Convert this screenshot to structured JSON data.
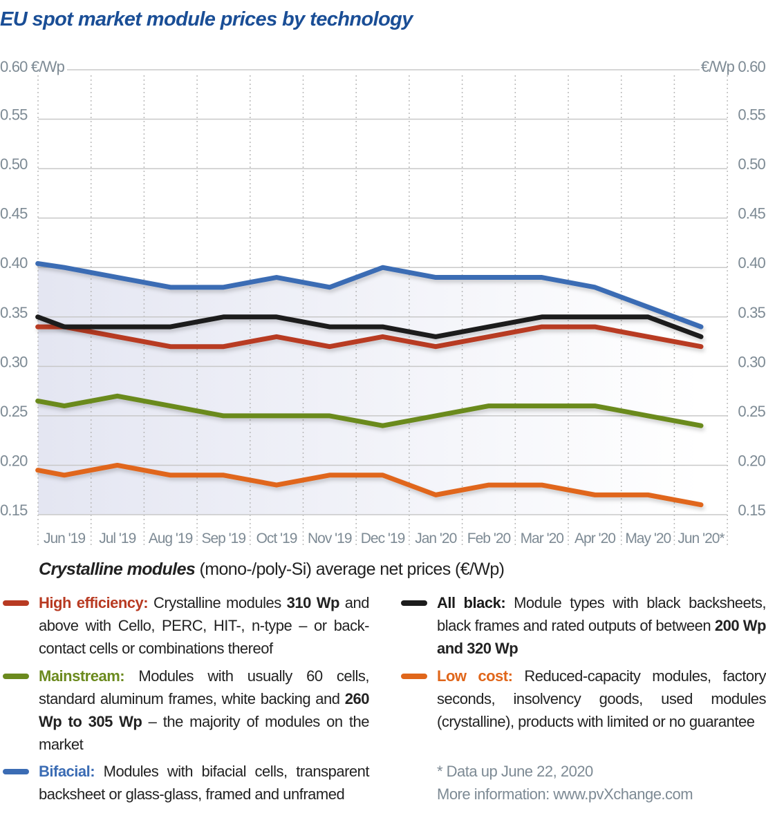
{
  "chart_data": {
    "type": "line",
    "title": "EU spot market module prices  by technology",
    "ylabel_left": "0.60 €/Wp",
    "ylabel_right": "€/Wp 0.60",
    "ylim": [
      0.15,
      0.6
    ],
    "yticks": [
      "0.55",
      "0.50",
      "0.45",
      "0.40",
      "0.35",
      "0.30",
      "0.25",
      "0.20",
      "0.15"
    ],
    "ytick_values": [
      0.55,
      0.5,
      0.45,
      0.4,
      0.35,
      0.3,
      0.25,
      0.2,
      0.15
    ],
    "categories": [
      "Jun '19",
      "Jul '19",
      "Aug '19",
      "Sep '19",
      "Oct '19",
      "Nov '19",
      "Dec '19",
      "Jan '20",
      "Feb '20",
      "Mar '20",
      "Apr '20",
      "May '20",
      "Jun '20*"
    ],
    "x": [
      -0.5,
      0,
      1,
      2,
      3,
      4,
      5,
      6,
      7,
      8,
      9,
      10,
      11,
      12
    ],
    "grid": true,
    "series": [
      {
        "name": "Bifacial",
        "color": "#3b6cb4",
        "values": [
          0.404,
          0.4,
          0.39,
          0.38,
          0.38,
          0.39,
          0.38,
          0.4,
          0.39,
          0.39,
          0.39,
          0.38,
          0.36,
          0.34
        ]
      },
      {
        "name": "All black",
        "color": "#1c1c1c",
        "values": [
          0.35,
          0.34,
          0.34,
          0.34,
          0.35,
          0.35,
          0.34,
          0.34,
          0.33,
          0.34,
          0.35,
          0.35,
          0.35,
          0.33
        ]
      },
      {
        "name": "High efficiency",
        "color": "#b83a22",
        "values": [
          0.34,
          0.34,
          0.33,
          0.32,
          0.32,
          0.33,
          0.32,
          0.33,
          0.32,
          0.33,
          0.34,
          0.34,
          0.33,
          0.32
        ]
      },
      {
        "name": "Mainstream",
        "color": "#6b8a1e",
        "values": [
          0.265,
          0.26,
          0.27,
          0.26,
          0.25,
          0.25,
          0.25,
          0.24,
          0.25,
          0.26,
          0.26,
          0.26,
          0.25,
          0.24
        ]
      },
      {
        "name": "Low cost",
        "color": "#e0661a",
        "values": [
          0.195,
          0.19,
          0.2,
          0.19,
          0.19,
          0.18,
          0.19,
          0.19,
          0.17,
          0.18,
          0.18,
          0.17,
          0.17,
          0.16
        ]
      }
    ]
  },
  "subtitle": {
    "bold": "Crystalline modules",
    "rest": " (mono-/poly-Si) average net prices (€/Wp)"
  },
  "legend": [
    {
      "label": "High efficiency:",
      "color": "#b83a22",
      "parts": [
        {
          "t": " Crystalline modules "
        },
        {
          "t": "310 Wp",
          "b": true
        },
        {
          "t": " and above with Cello, PERC, HIT-, n-type – or back-contact cells or combinations thereof"
        }
      ]
    },
    {
      "label": "Mainstream:",
      "color": "#6b8a1e",
      "parts": [
        {
          "t": " Modules with usually 60 cells, standard aluminum frames, white backing and "
        },
        {
          "t": "260 Wp to 305 Wp",
          "b": true
        },
        {
          "t": " – the majority of modules on the market"
        }
      ]
    },
    {
      "label": "Bifacial:",
      "color": "#3b6cb4",
      "parts": [
        {
          "t": " Modules with bifacial cells, transparent backsheet or glass-glass, framed and unframed"
        }
      ]
    },
    {
      "label": "All black:",
      "color": "#1c1c1c",
      "parts": [
        {
          "t": " Module types with black backsheets, black frames and rated outputs of between "
        },
        {
          "t": "200 Wp and 320 Wp",
          "b": true
        }
      ]
    },
    {
      "label": "Low cost:",
      "color": "#e0661a",
      "parts": [
        {
          "t": " Reduced-capacity modules, factory seconds, insolvency goods, used modules (crystalline), products with limited or no guarantee"
        }
      ]
    }
  ],
  "note": {
    "line1": "* Data up June 22, 2020",
    "line2": "More information: www.pvXchange.com"
  }
}
